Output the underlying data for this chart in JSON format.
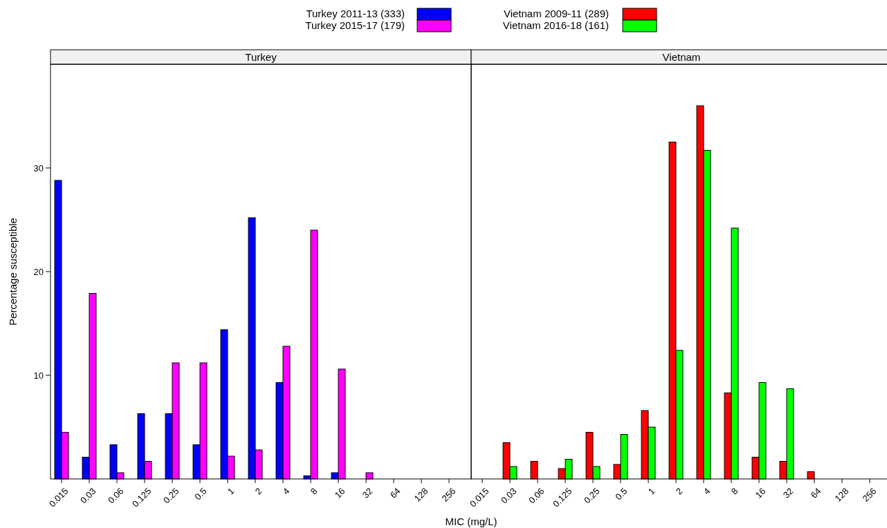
{
  "chart_data": [
    {
      "type": "bar",
      "title": "Turkey",
      "xlabel": "MIC (mg/L)",
      "ylabel": "Percentage susceptible",
      "categories": [
        "0.015",
        "0.03",
        "0.06",
        "0.125",
        "0.25",
        "0.5",
        "1",
        "2",
        "4",
        "8",
        "16",
        "32",
        "64",
        "128",
        "256"
      ],
      "ylim": [
        0,
        40
      ],
      "yticks": [
        10,
        20,
        30
      ],
      "legend": "top",
      "series": [
        {
          "name": "Turkey 2011-13 (333)",
          "color": "#0000ff",
          "values": [
            28.8,
            2.1,
            3.3,
            6.3,
            6.3,
            3.3,
            14.4,
            25.2,
            9.3,
            0.3,
            0.6,
            0,
            0,
            0,
            0
          ]
        },
        {
          "name": "Turkey 2015-17 (179)",
          "color": "#ff00ff",
          "values": [
            4.5,
            17.9,
            0.6,
            1.7,
            11.2,
            11.2,
            2.2,
            2.8,
            12.8,
            24.0,
            10.6,
            0.6,
            0,
            0,
            0
          ]
        }
      ]
    },
    {
      "type": "bar",
      "title": "Vietnam",
      "categories": [
        "0.015",
        "0.03",
        "0.06",
        "0.125",
        "0.25",
        "0.5",
        "1",
        "2",
        "4",
        "8",
        "16",
        "32",
        "64",
        "128",
        "256"
      ],
      "ylim": [
        0,
        40
      ],
      "legend": "top",
      "tick_labels": "x",
      "series": [
        {
          "name": "Vietnam 2009-11 (289)",
          "color": "#ff0000",
          "values": [
            0,
            3.5,
            1.7,
            1.0,
            4.5,
            1.4,
            6.6,
            32.5,
            36.0,
            8.3,
            2.1,
            1.7,
            0.7,
            0,
            0
          ]
        },
        {
          "name": "Vietnam 2016-18 (161)",
          "color": "#00ff00",
          "values": [
            0,
            1.2,
            0,
            1.9,
            1.2,
            4.3,
            5.0,
            12.4,
            31.7,
            24.2,
            9.3,
            8.7,
            0,
            0,
            0
          ]
        }
      ]
    }
  ]
}
